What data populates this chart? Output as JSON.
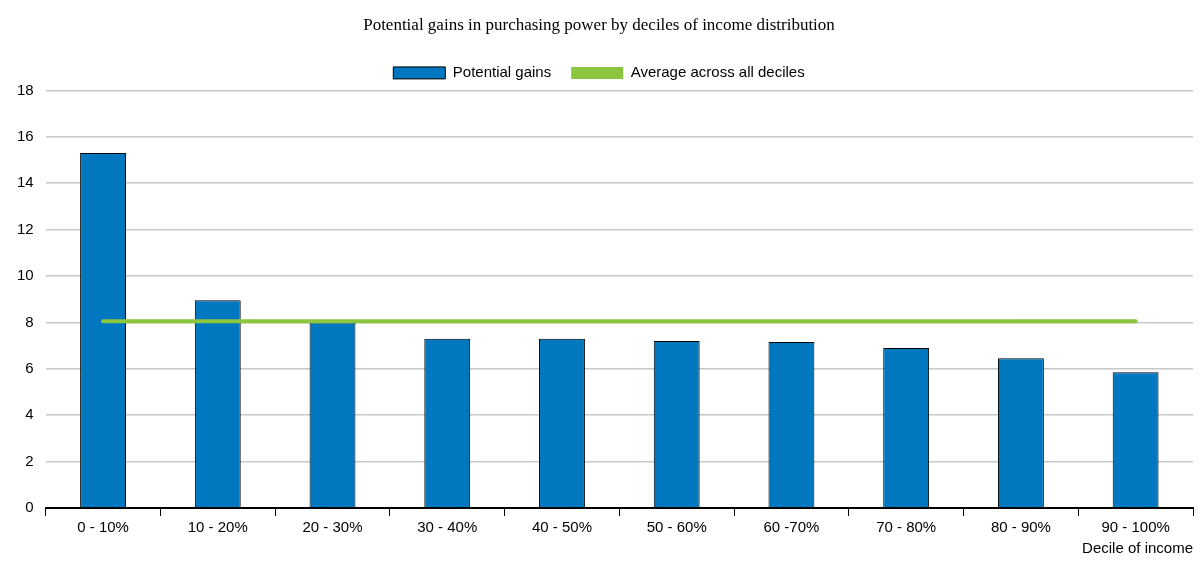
{
  "chart_data": {
    "type": "bar",
    "title": "Potential gains in purchasing power by deciles of income distribution",
    "xlabel": "Decile of income",
    "categories": [
      "0 - 10%",
      "10 - 20%",
      "20 - 30%",
      "30 - 40%",
      "40 - 50%",
      "50 - 60%",
      "60 -70%",
      "70 - 80%",
      "80 - 90%",
      "90 - 100%"
    ],
    "series": [
      {
        "name": "Potential gains",
        "color": "#0077bf",
        "values": [
          15.3,
          8.95,
          8.0,
          7.3,
          7.3,
          7.2,
          7.15,
          6.9,
          6.45,
          5.85
        ]
      },
      {
        "name": "Average across all deciles",
        "type": "line",
        "color": "#8cc63f",
        "values": [
          8.05,
          8.05,
          8.05,
          8.05,
          8.05,
          8.05,
          8.05,
          8.05,
          8.05,
          8.05
        ]
      }
    ],
    "ylim": [
      0,
      18
    ],
    "yticks": [
      0,
      2,
      4,
      6,
      8,
      10,
      12,
      14,
      16,
      18
    ],
    "grid": "y",
    "legend": "top",
    "marker": "none"
  }
}
